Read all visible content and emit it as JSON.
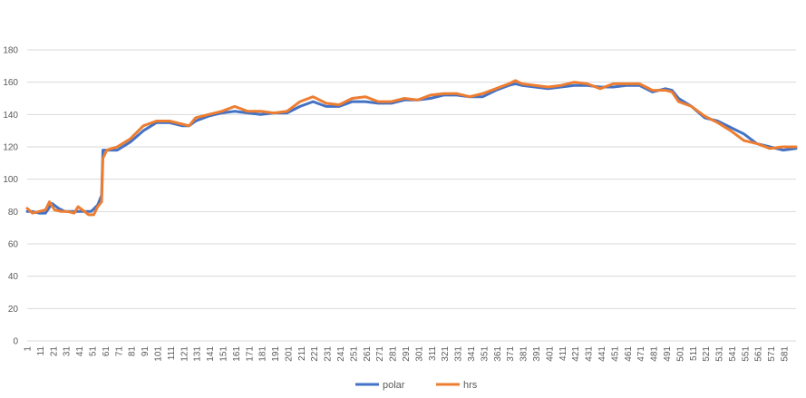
{
  "chart_data": {
    "type": "line",
    "title": "",
    "xlabel": "",
    "ylabel": "",
    "ylim": [
      0,
      180
    ],
    "yticks": [
      0,
      20,
      40,
      60,
      80,
      100,
      120,
      140,
      160,
      180
    ],
    "xlim": [
      1,
      590
    ],
    "xticks": [
      1,
      11,
      21,
      31,
      41,
      51,
      61,
      71,
      81,
      91,
      101,
      111,
      121,
      131,
      141,
      151,
      161,
      171,
      181,
      191,
      201,
      211,
      221,
      231,
      241,
      251,
      261,
      271,
      281,
      291,
      301,
      311,
      321,
      331,
      341,
      351,
      361,
      371,
      381,
      391,
      401,
      411,
      421,
      431,
      441,
      451,
      461,
      471,
      481,
      491,
      501,
      511,
      521,
      531,
      541,
      551,
      561,
      571,
      581
    ],
    "grid": true,
    "legend": "bottom",
    "colors": {
      "polar": "#4472C4",
      "hrs": "#ED7D31",
      "grid": "#d9d9d9",
      "text": "#595959"
    },
    "series": [
      {
        "name": "polar",
        "color": "#4472C4",
        "x": [
          1,
          5,
          10,
          15,
          20,
          25,
          30,
          35,
          40,
          45,
          50,
          55,
          58,
          59,
          62,
          70,
          80,
          90,
          100,
          110,
          120,
          125,
          130,
          140,
          150,
          160,
          170,
          180,
          190,
          200,
          210,
          220,
          230,
          240,
          250,
          260,
          270,
          280,
          290,
          300,
          310,
          320,
          330,
          340,
          350,
          360,
          370,
          375,
          380,
          390,
          400,
          410,
          420,
          430,
          440,
          450,
          460,
          470,
          480,
          490,
          495,
          500,
          510,
          520,
          530,
          540,
          550,
          560,
          570,
          580,
          590
        ],
        "y": [
          80,
          80,
          79,
          79,
          85,
          82,
          80,
          80,
          80,
          80,
          80,
          84,
          90,
          118,
          118,
          118,
          123,
          130,
          135,
          135,
          133,
          133,
          136,
          139,
          141,
          142,
          141,
          140,
          141,
          141,
          145,
          148,
          145,
          145,
          148,
          148,
          147,
          147,
          149,
          149,
          150,
          152,
          152,
          151,
          151,
          155,
          158,
          159,
          158,
          157,
          156,
          157,
          158,
          158,
          157,
          157,
          158,
          158,
          154,
          156,
          155,
          150,
          145,
          138,
          136,
          132,
          128,
          122,
          120,
          118,
          119
        ]
      },
      {
        "name": "hrs",
        "color": "#ED7D31",
        "x": [
          1,
          5,
          10,
          15,
          18,
          22,
          27,
          32,
          37,
          40,
          45,
          48,
          52,
          55,
          58,
          59,
          62,
          70,
          80,
          90,
          100,
          110,
          120,
          125,
          130,
          140,
          150,
          160,
          170,
          180,
          190,
          200,
          210,
          220,
          230,
          240,
          250,
          260,
          270,
          280,
          290,
          300,
          310,
          320,
          330,
          340,
          350,
          360,
          370,
          375,
          380,
          390,
          400,
          410,
          420,
          430,
          440,
          450,
          460,
          470,
          480,
          490,
          495,
          500,
          510,
          520,
          530,
          540,
          550,
          560,
          570,
          580,
          590
        ],
        "y": [
          82,
          79,
          80,
          81,
          86,
          81,
          80,
          80,
          79,
          83,
          80,
          78,
          78,
          83,
          86,
          113,
          118,
          120,
          125,
          133,
          136,
          136,
          134,
          133,
          138,
          140,
          142,
          145,
          142,
          142,
          141,
          142,
          148,
          151,
          147,
          146,
          150,
          151,
          148,
          148,
          150,
          149,
          152,
          153,
          153,
          151,
          153,
          156,
          159,
          161,
          159,
          158,
          157,
          158,
          160,
          159,
          156,
          159,
          159,
          159,
          155,
          155,
          154,
          148,
          145,
          139,
          135,
          130,
          124,
          122,
          119,
          120,
          120
        ]
      }
    ]
  }
}
